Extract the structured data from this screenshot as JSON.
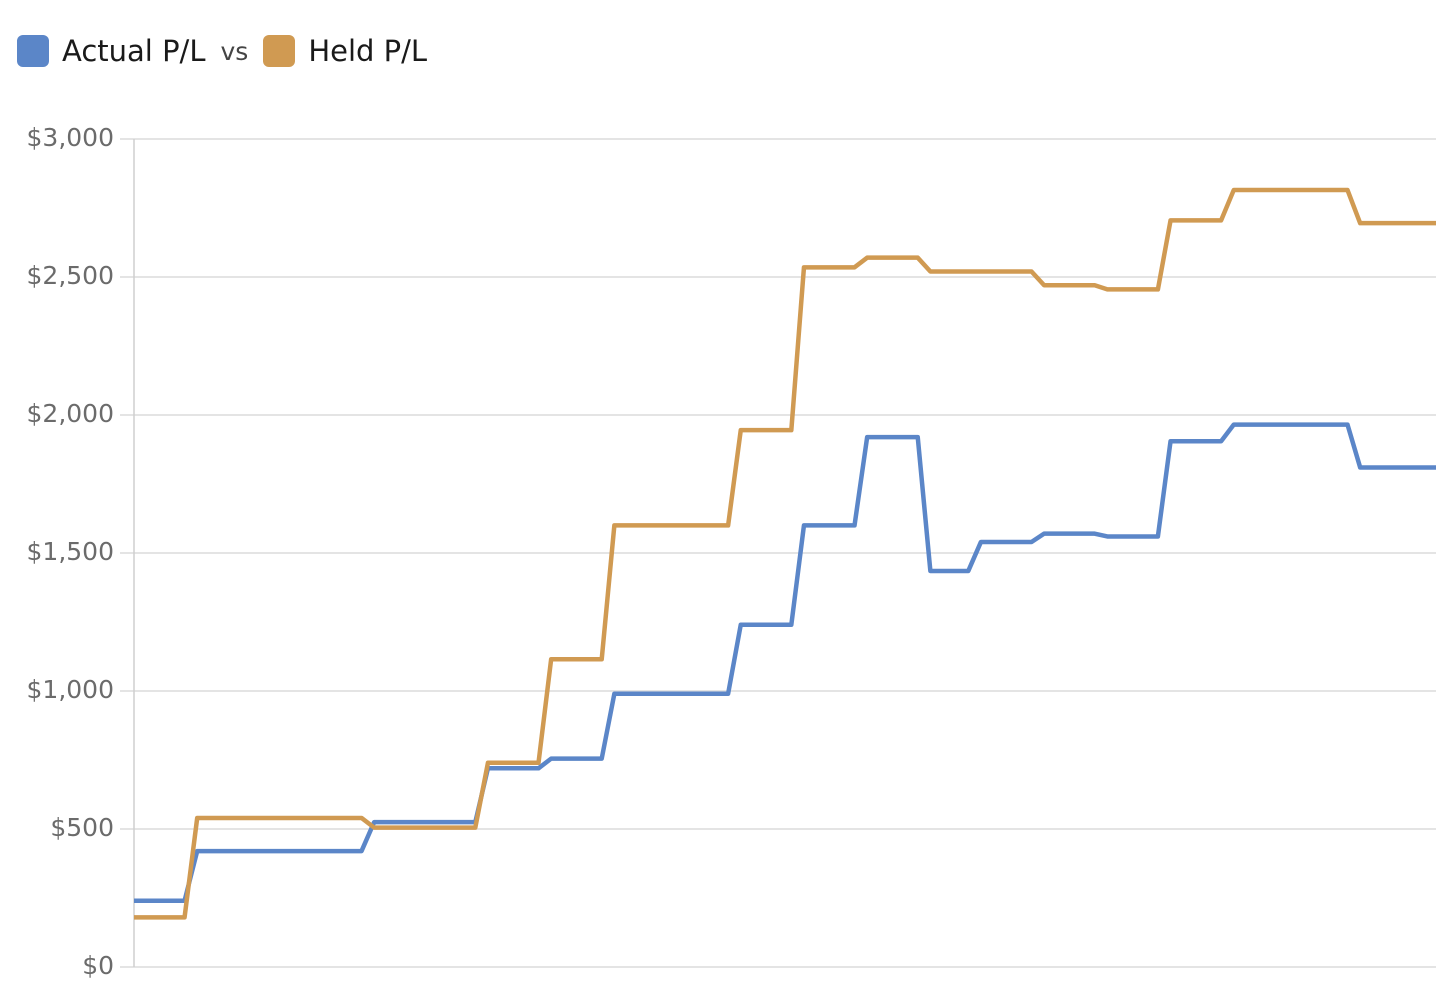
{
  "chart_data": {
    "type": "line",
    "legend_joiner": "vs",
    "series": [
      {
        "name": "Actual P/L",
        "color": "#5b86c8",
        "values": [
          240,
          240,
          240,
          240,
          240,
          420,
          420,
          420,
          420,
          420,
          420,
          420,
          420,
          420,
          420,
          420,
          420,
          420,
          420,
          525,
          525,
          525,
          525,
          525,
          525,
          525,
          525,
          525,
          720,
          720,
          720,
          720,
          720,
          755,
          755,
          755,
          755,
          755,
          990,
          990,
          990,
          990,
          990,
          990,
          990,
          990,
          990,
          990,
          1240,
          1240,
          1240,
          1240,
          1240,
          1600,
          1600,
          1600,
          1600,
          1600,
          1920,
          1920,
          1920,
          1920,
          1920,
          1435,
          1435,
          1435,
          1435,
          1540,
          1540,
          1540,
          1540,
          1540,
          1570,
          1570,
          1570,
          1570,
          1570,
          1560,
          1560,
          1560,
          1560,
          1560,
          1905,
          1905,
          1905,
          1905,
          1905,
          1965,
          1965,
          1965,
          1965,
          1965,
          1965,
          1965,
          1965,
          1965,
          1965,
          1810,
          1810,
          1810,
          1810,
          1810,
          1810,
          1810
        ]
      },
      {
        "name": "Held P/L",
        "color": "#d09a52",
        "values": [
          180,
          180,
          180,
          180,
          180,
          540,
          540,
          540,
          540,
          540,
          540,
          540,
          540,
          540,
          540,
          540,
          540,
          540,
          540,
          505,
          505,
          505,
          505,
          505,
          505,
          505,
          505,
          505,
          740,
          740,
          740,
          740,
          740,
          1115,
          1115,
          1115,
          1115,
          1115,
          1600,
          1600,
          1600,
          1600,
          1600,
          1600,
          1600,
          1600,
          1600,
          1600,
          1945,
          1945,
          1945,
          1945,
          1945,
          2535,
          2535,
          2535,
          2535,
          2535,
          2570,
          2570,
          2570,
          2570,
          2570,
          2520,
          2520,
          2520,
          2520,
          2520,
          2520,
          2520,
          2520,
          2520,
          2470,
          2470,
          2470,
          2470,
          2470,
          2455,
          2455,
          2455,
          2455,
          2455,
          2705,
          2705,
          2705,
          2705,
          2705,
          2815,
          2815,
          2815,
          2815,
          2815,
          2815,
          2815,
          2815,
          2815,
          2815,
          2695,
          2695,
          2695,
          2695,
          2695,
          2695,
          2695
        ]
      }
    ],
    "ylim": [
      0,
      3000
    ],
    "yticks": [
      {
        "value": 0,
        "label": "$0"
      },
      {
        "value": 500,
        "label": "$500"
      },
      {
        "value": 1000,
        "label": "$1,000"
      },
      {
        "value": 1500,
        "label": "$1,500"
      },
      {
        "value": 2000,
        "label": "$2,000"
      },
      {
        "value": 2500,
        "label": "$2,500"
      },
      {
        "value": 3000,
        "label": "$3,000"
      }
    ],
    "grid": true
  }
}
